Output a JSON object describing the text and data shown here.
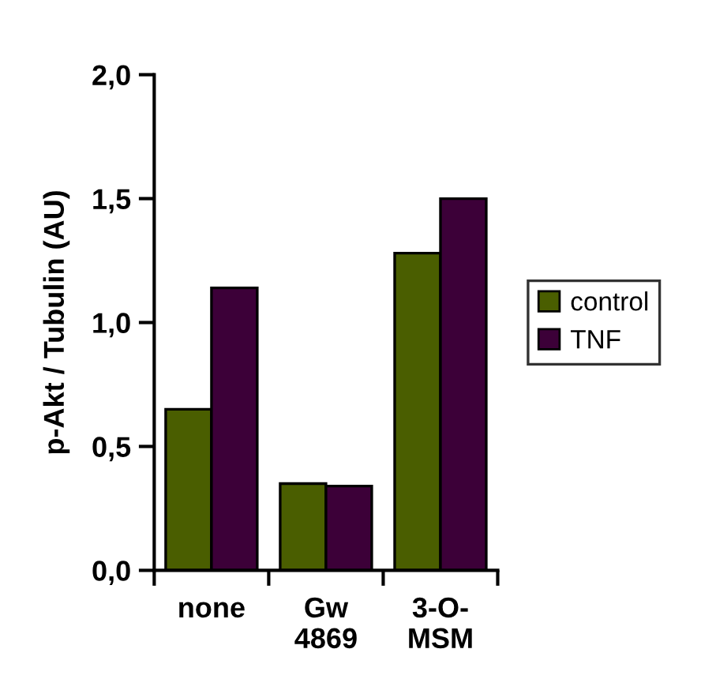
{
  "chart_data": {
    "type": "bar",
    "ylabel": "p-Akt / Tubulin (AU)",
    "categories": [
      "none",
      "Gw\n4869",
      "3-O-\nMSM"
    ],
    "series": [
      {
        "name": "control",
        "color": "#4a5e00",
        "values": [
          0.65,
          0.35,
          1.28
        ]
      },
      {
        "name": "TNF",
        "color": "#3c0038",
        "values": [
          1.14,
          0.34,
          1.5
        ]
      }
    ],
    "ylim": [
      0,
      2
    ],
    "yticks": [
      {
        "value": 0,
        "label": "0,0"
      },
      {
        "value": 0.5,
        "label": "0,5"
      },
      {
        "value": 1,
        "label": "1,0"
      },
      {
        "value": 1.5,
        "label": "1,5"
      },
      {
        "value": 2,
        "label": "2,0"
      }
    ],
    "grid": false,
    "legend": "right"
  }
}
